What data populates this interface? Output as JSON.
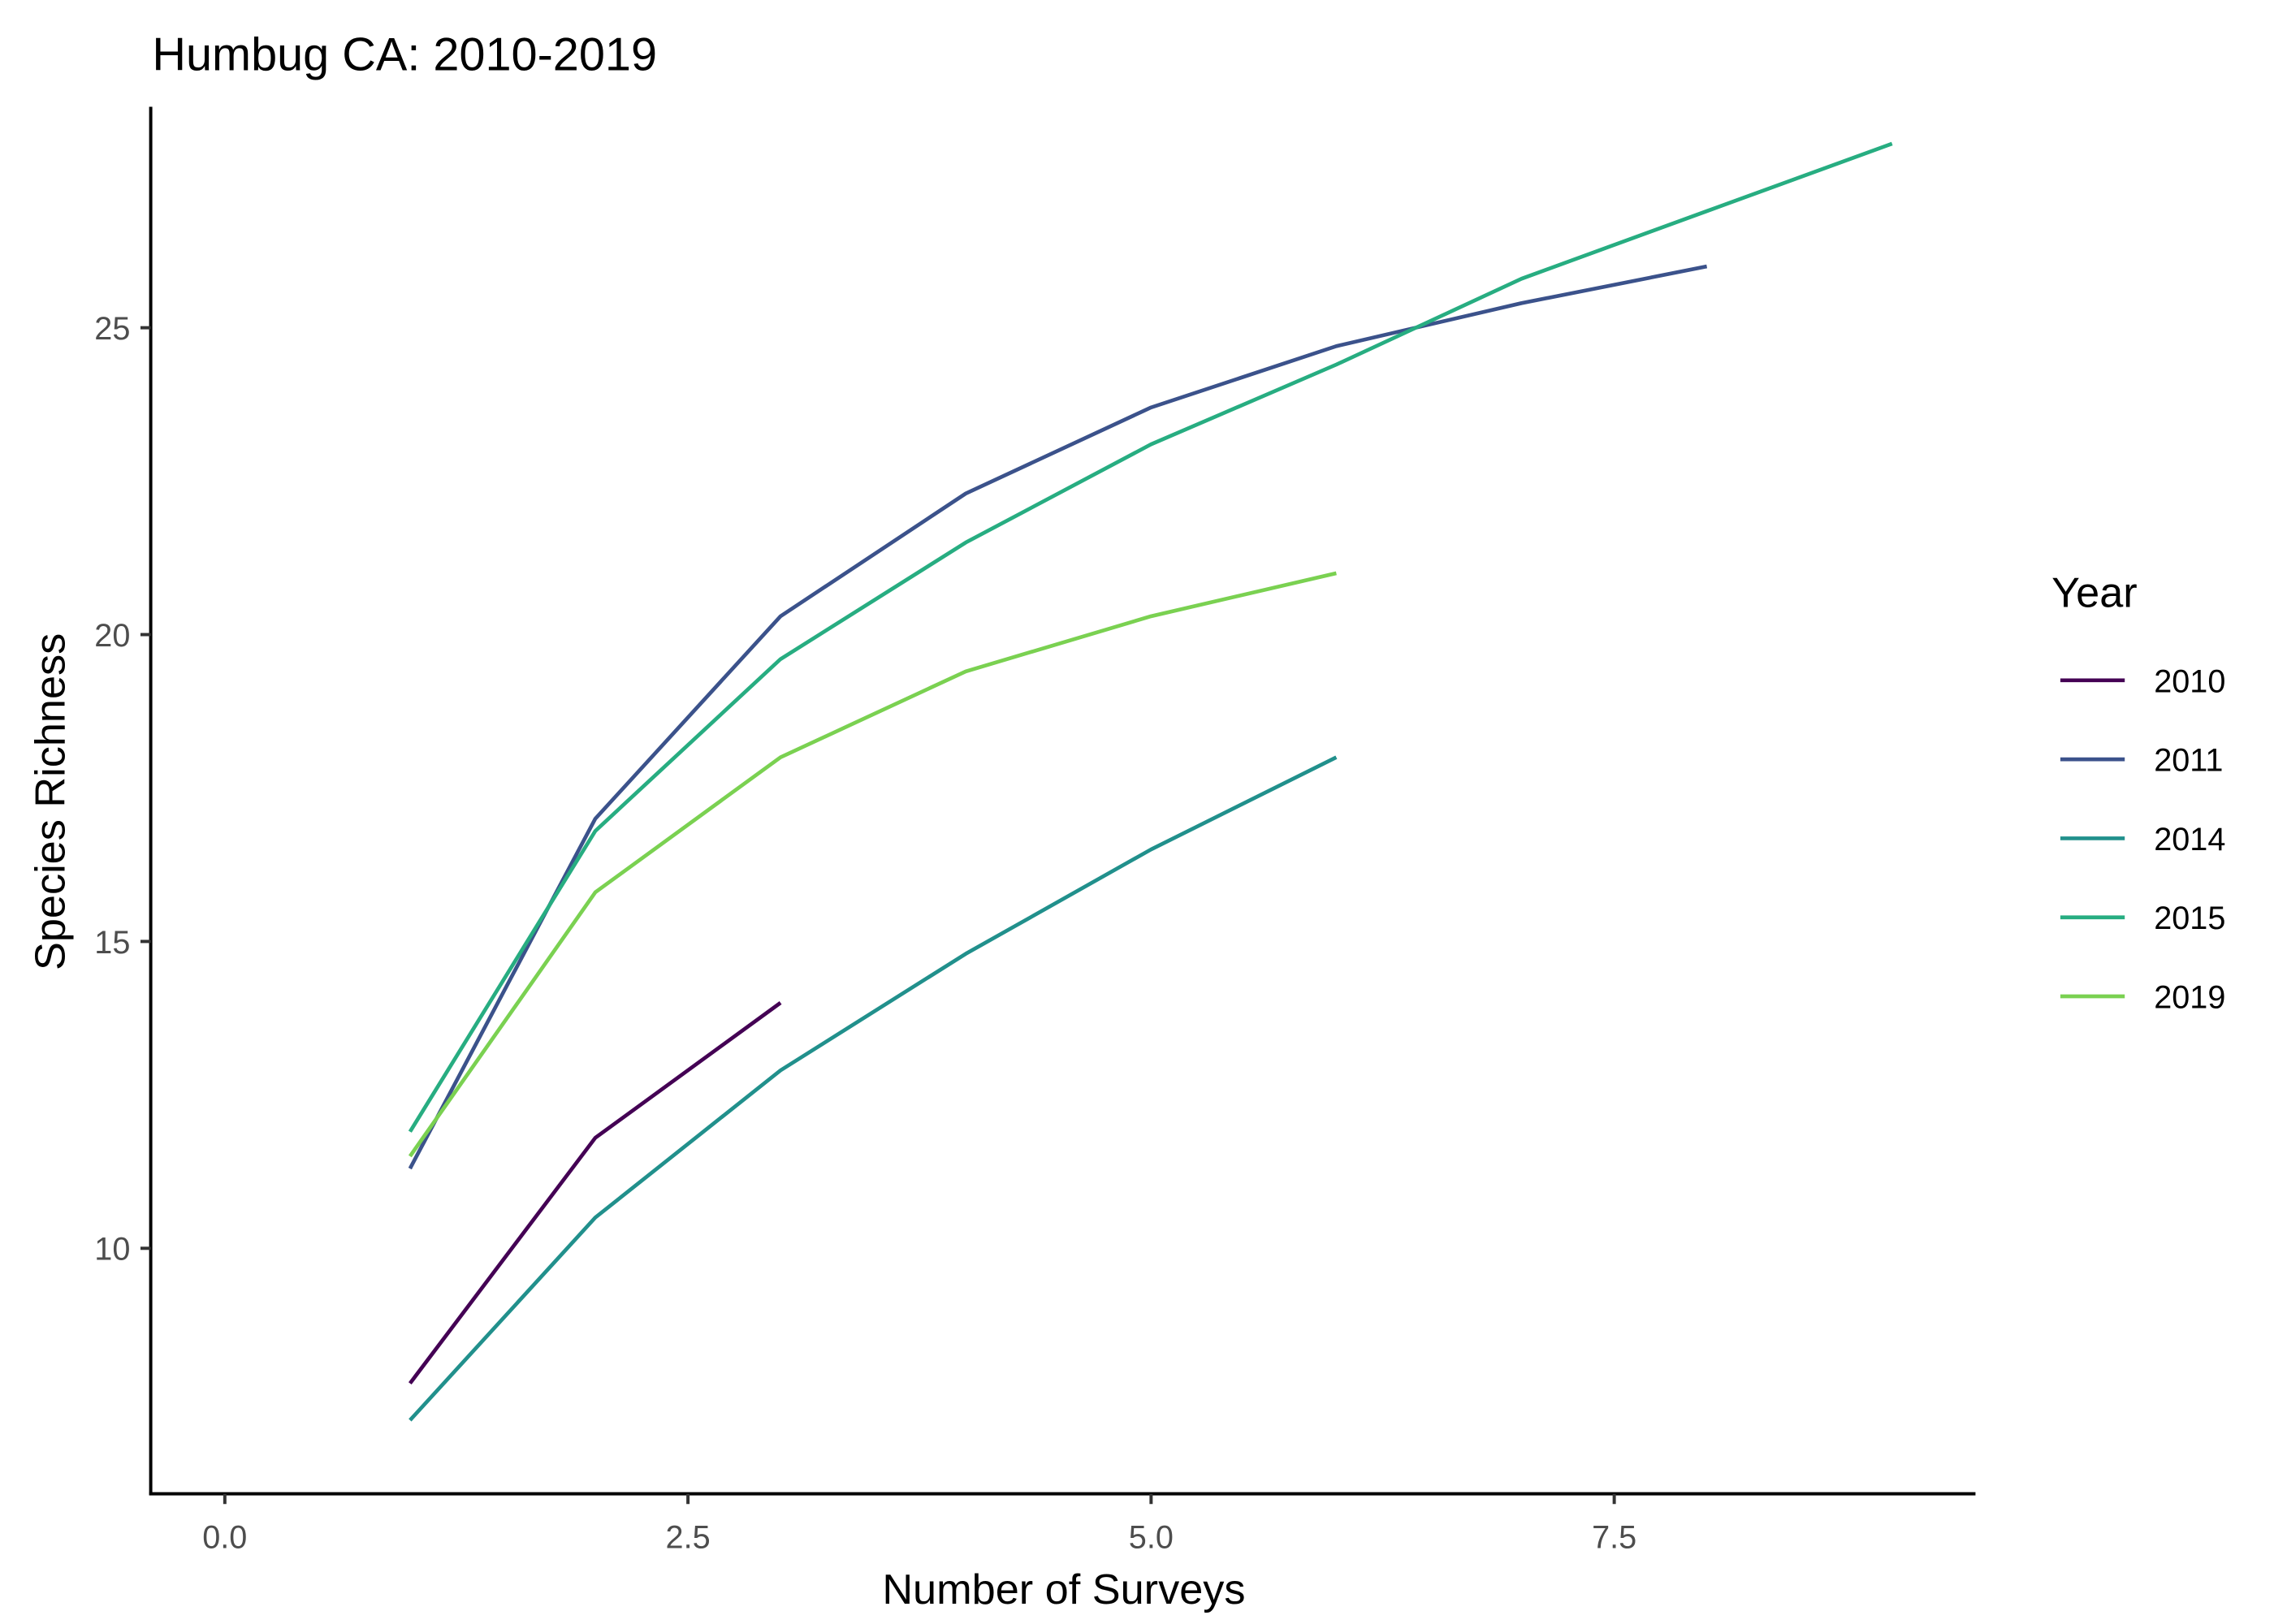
{
  "chart_data": {
    "type": "line",
    "title": "Humbug CA: 2010-2019",
    "xlabel": "Number of Surveys",
    "ylabel": "Species Richness",
    "xlim": [
      -0.4,
      9.45
    ],
    "ylim": [
      6.0,
      28.6
    ],
    "xticks": [
      0.0,
      2.5,
      5.0,
      7.5
    ],
    "xtick_labels": [
      "0.0",
      "2.5",
      "5.0",
      "7.5"
    ],
    "yticks": [
      10,
      15,
      20,
      25
    ],
    "ytick_labels": [
      "10",
      "15",
      "20",
      "25"
    ],
    "grid": false,
    "legend": {
      "title": "Year",
      "position": "right"
    },
    "series": [
      {
        "name": "2010",
        "color": "#440154",
        "x": [
          1,
          2,
          3
        ],
        "y": [
          7.8,
          11.8,
          14.0
        ]
      },
      {
        "name": "2011",
        "color": "#3B528B",
        "x": [
          1,
          2,
          3,
          4,
          5,
          6,
          7,
          8
        ],
        "y": [
          11.3,
          17.0,
          20.3,
          22.3,
          23.7,
          24.7,
          25.4,
          26.0
        ]
      },
      {
        "name": "2014",
        "color": "#21908C",
        "x": [
          1,
          2,
          3,
          4,
          5,
          6
        ],
        "y": [
          7.2,
          10.5,
          12.9,
          14.8,
          16.5,
          18.0
        ]
      },
      {
        "name": "2015",
        "color": "#27AD81",
        "x": [
          1,
          2,
          3,
          4,
          5,
          6,
          7,
          8,
          9
        ],
        "y": [
          11.9,
          16.8,
          19.6,
          21.5,
          23.1,
          24.4,
          25.8,
          26.9,
          28.0
        ]
      },
      {
        "name": "2019",
        "color": "#7AD151",
        "x": [
          1,
          2,
          3,
          4,
          5,
          6
        ],
        "y": [
          11.5,
          15.8,
          18.0,
          19.4,
          20.3,
          21.0
        ]
      }
    ]
  }
}
